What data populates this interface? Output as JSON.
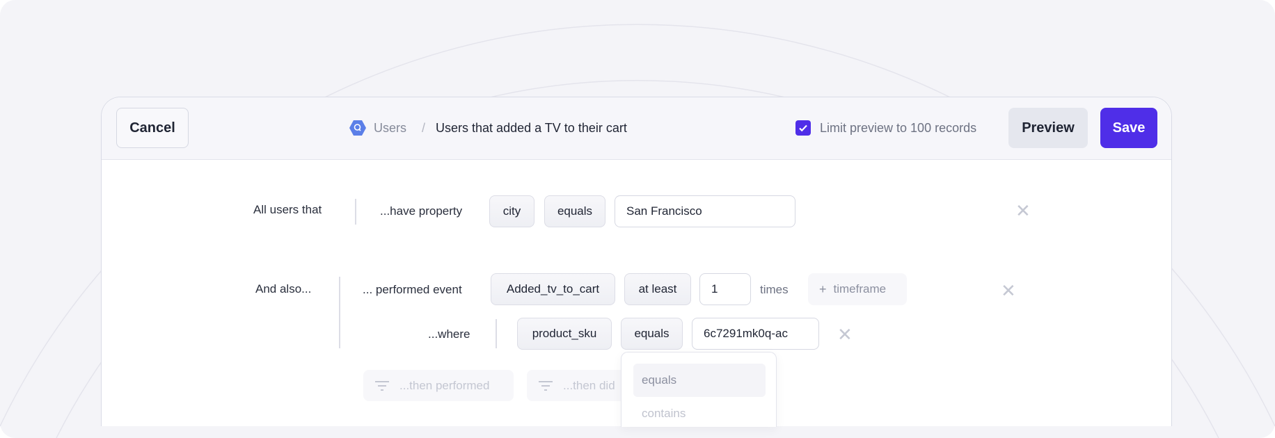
{
  "header": {
    "cancel_label": "Cancel",
    "breadcrumb": {
      "parent": "Users",
      "separator": "/",
      "current": "Users that added a TV to their cart",
      "icon": "database-search-icon"
    },
    "limit_preview": {
      "label": "Limit preview to 100 records",
      "checked": true
    },
    "preview_label": "Preview",
    "save_label": "Save"
  },
  "colors": {
    "accent": "#4f2ee8",
    "icon_blue": "#5b7fe8",
    "background": "#f4f4f8"
  },
  "rule1": {
    "prefix": "All users that",
    "clause": "...have property",
    "property": "city",
    "operator": "equals",
    "value": "San Francisco"
  },
  "rule2": {
    "prefix": "And also...",
    "clause": "... performed event",
    "event": "Added_tv_to_cart",
    "frequency": "at least",
    "count": "1",
    "count_unit": "times",
    "timeframe_label": "timeframe",
    "where": {
      "label": "...where",
      "property": "product_sku",
      "operator": "equals",
      "value": "6c7291mk0q-ac"
    }
  },
  "actions": {
    "then_performed": "...then performed",
    "then_did_not": "...then did"
  },
  "operator_dropdown": {
    "options": [
      "equals",
      "contains"
    ],
    "highlighted": "equals"
  }
}
